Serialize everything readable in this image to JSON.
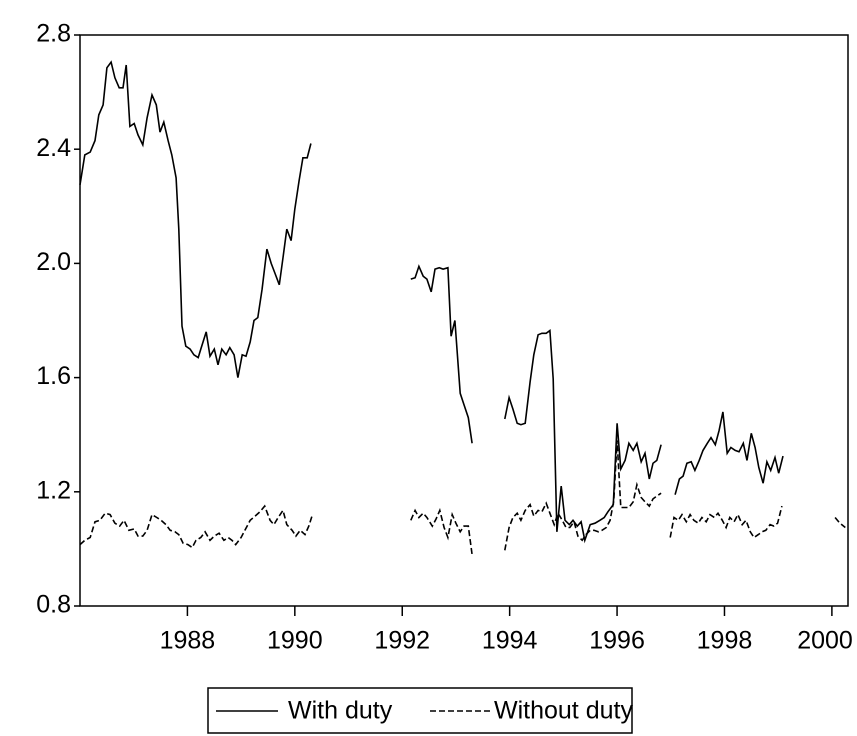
{
  "chart_data": {
    "type": "line",
    "xlim": [
      1986,
      2000.3
    ],
    "xticks": [
      1988,
      1990,
      1992,
      1994,
      1996,
      1998,
      2000
    ],
    "ylim": [
      0.8,
      2.8
    ],
    "yticks": [
      0.8,
      1.2,
      1.6,
      {
        "value": 2.0,
        "label": "2.0"
      },
      2.4,
      2.8
    ],
    "legend": "bottom",
    "series": [
      {
        "name": "With duty",
        "color": "#000000",
        "dash": "solid",
        "x": [
          1986.0,
          1986.09,
          1986.19,
          1986.28,
          1986.35,
          1986.43,
          1986.5,
          1986.58,
          1986.65,
          1986.73,
          1986.8,
          1986.86,
          1986.93,
          1987.01,
          1987.08,
          1987.17,
          1987.25,
          1987.34,
          1987.42,
          1987.49,
          1987.56,
          1987.64,
          1987.71,
          1987.79,
          1987.84,
          1987.9,
          1987.97,
          1988.05,
          1988.12,
          1988.2,
          1988.25,
          1988.35,
          1988.42,
          1988.5,
          1988.57,
          1988.64,
          1988.72,
          1988.79,
          1988.87,
          1988.94,
          1989.02,
          1989.09,
          1989.17,
          1989.24,
          1989.31,
          1989.39,
          1989.48,
          1989.56,
          1989.63,
          1989.71,
          1989.78,
          1989.85,
          1989.93,
          1990.0,
          1990.08,
          1990.15,
          1990.23,
          1990.3,
          1991.2,
          1992.16,
          1992.24,
          1992.31,
          1992.39,
          1992.46,
          1992.54,
          1992.61,
          1992.69,
          1992.76,
          1992.85,
          1992.91,
          1992.98,
          1993.08,
          1993.15,
          1993.23,
          1993.3,
          1993.6,
          1993.91,
          1993.99,
          1994.06,
          1994.14,
          1994.21,
          1994.29,
          1994.38,
          1994.45,
          1994.53,
          1994.6,
          1994.68,
          1994.75,
          1994.81,
          1994.88,
          1994.96,
          1995.03,
          1995.11,
          1995.18,
          1995.26,
          1995.33,
          1995.4,
          1995.5,
          1995.59,
          1995.68,
          1995.76,
          1995.83,
          1995.93,
          1996.0,
          1996.07,
          1996.15,
          1996.22,
          1996.3,
          1996.37,
          1996.45,
          1996.52,
          1996.6,
          1996.67,
          1996.74,
          1996.82,
          1996.95,
          1997.08,
          1997.16,
          1997.23,
          1997.3,
          1997.38,
          1997.45,
          1997.53,
          1997.6,
          1997.68,
          1997.75,
          1997.83,
          1997.9,
          1997.97,
          1998.05,
          1998.12,
          1998.2,
          1998.27,
          1998.35,
          1998.42,
          1998.5,
          1998.57,
          1998.64,
          1998.72,
          1998.79,
          1998.86,
          1998.94,
          1999.01,
          1999.09
        ],
        "values": [
          2.275,
          2.38,
          2.39,
          2.43,
          2.52,
          2.555,
          2.685,
          2.705,
          2.65,
          2.615,
          2.615,
          2.695,
          2.48,
          2.49,
          2.45,
          2.415,
          2.51,
          2.59,
          2.555,
          2.46,
          2.495,
          2.43,
          2.38,
          2.3,
          2.12,
          1.78,
          1.71,
          1.7,
          1.68,
          1.67,
          1.7,
          1.76,
          1.675,
          1.7,
          1.645,
          1.7,
          1.68,
          1.705,
          1.68,
          1.6,
          1.68,
          1.675,
          1.725,
          1.8,
          1.81,
          1.91,
          2.05,
          2.0,
          1.965,
          1.925,
          2.02,
          2.12,
          2.08,
          2.19,
          2.29,
          2.37,
          2.37,
          2.42,
          null,
          1.945,
          1.95,
          1.99,
          1.955,
          1.945,
          1.9,
          1.98,
          1.985,
          1.98,
          1.985,
          1.745,
          1.8,
          1.545,
          1.505,
          1.46,
          1.37,
          null,
          1.455,
          1.53,
          1.49,
          1.44,
          1.435,
          1.44,
          1.585,
          1.68,
          1.75,
          1.755,
          1.755,
          1.765,
          1.595,
          1.06,
          1.22,
          1.1,
          1.085,
          1.1,
          1.08,
          1.095,
          1.03,
          1.085,
          1.09,
          1.1,
          1.11,
          1.13,
          1.155,
          1.44,
          1.28,
          1.31,
          1.37,
          1.345,
          1.37,
          1.305,
          1.335,
          1.245,
          1.3,
          1.31,
          1.365,
          null,
          1.19,
          1.245,
          1.255,
          1.3,
          1.305,
          1.275,
          1.31,
          1.345,
          1.37,
          1.39,
          1.365,
          1.415,
          1.48,
          1.335,
          1.355,
          1.345,
          1.34,
          1.37,
          1.31,
          1.405,
          1.355,
          1.285,
          1.23,
          1.305,
          1.275,
          1.32,
          1.265,
          1.325
        ]
      },
      {
        "name": "Without duty",
        "color": "#000000",
        "dash": "dashed",
        "x": [
          1986.0,
          1986.09,
          1986.19,
          1986.28,
          1986.37,
          1986.47,
          1986.56,
          1986.65,
          1986.74,
          1986.82,
          1986.91,
          1987.01,
          1987.08,
          1987.17,
          1987.25,
          1987.34,
          1987.43,
          1987.51,
          1987.6,
          1987.68,
          1987.77,
          1987.84,
          1987.92,
          1988.01,
          1988.09,
          1988.16,
          1988.25,
          1988.33,
          1988.42,
          1988.5,
          1988.59,
          1988.68,
          1988.76,
          1988.83,
          1988.9,
          1989.0,
          1989.07,
          1989.17,
          1989.26,
          1989.35,
          1989.44,
          1989.54,
          1989.61,
          1989.69,
          1989.78,
          1989.85,
          1989.95,
          1990.02,
          1990.1,
          1990.19,
          1990.26,
          1990.32,
          1991.2,
          1992.16,
          1992.24,
          1992.31,
          1992.39,
          1992.46,
          1992.56,
          1992.63,
          1992.7,
          1992.78,
          1992.85,
          1992.93,
          1993.0,
          1993.08,
          1993.15,
          1993.23,
          1993.3,
          1993.6,
          1993.91,
          1993.99,
          1994.06,
          1994.14,
          1994.21,
          1994.29,
          1994.38,
          1994.45,
          1994.53,
          1994.6,
          1994.68,
          1994.75,
          1994.83,
          1994.9,
          1994.98,
          1995.05,
          1995.12,
          1995.2,
          1995.27,
          1995.35,
          1995.42,
          1995.5,
          1995.57,
          1995.65,
          1995.72,
          1995.8,
          1995.87,
          1995.94,
          1996.0,
          1996.07,
          1996.22,
          1996.3,
          1996.37,
          1996.45,
          1996.52,
          1996.6,
          1996.67,
          1996.74,
          1996.82,
          1996.9,
          1996.99,
          1997.06,
          1997.14,
          1997.21,
          1997.29,
          1997.36,
          1997.43,
          1997.51,
          1997.58,
          1997.66,
          1997.73,
          1997.81,
          1997.88,
          1997.96,
          1998.03,
          1998.1,
          1998.18,
          1998.25,
          1998.33,
          1998.4,
          1998.48,
          1998.55,
          1998.63,
          1998.7,
          1998.77,
          1998.85,
          1998.92,
          1998.99,
          1999.07,
          1999.6,
          2000.06,
          2000.15,
          2000.25
        ],
        "values": [
          1.015,
          1.03,
          1.04,
          1.095,
          1.1,
          1.125,
          1.12,
          1.09,
          1.08,
          1.1,
          1.065,
          1.07,
          1.045,
          1.045,
          1.065,
          1.12,
          1.11,
          1.1,
          1.085,
          1.065,
          1.06,
          1.05,
          1.02,
          1.015,
          1.005,
          1.03,
          1.04,
          1.06,
          1.03,
          1.045,
          1.055,
          1.03,
          1.04,
          1.03,
          1.015,
          1.04,
          1.065,
          1.1,
          1.115,
          1.13,
          1.15,
          1.1,
          1.085,
          1.11,
          1.135,
          1.085,
          1.065,
          1.045,
          1.065,
          1.05,
          1.08,
          1.115,
          null,
          1.1,
          1.135,
          1.11,
          1.125,
          1.11,
          1.08,
          1.105,
          1.135,
          1.075,
          1.04,
          1.12,
          1.09,
          1.06,
          1.08,
          1.08,
          0.98,
          null,
          0.995,
          1.075,
          1.11,
          1.125,
          1.1,
          1.135,
          1.155,
          1.115,
          1.135,
          1.13,
          1.16,
          1.125,
          1.085,
          1.125,
          1.1,
          1.075,
          1.075,
          1.095,
          1.045,
          1.03,
          1.05,
          1.065,
          1.065,
          1.06,
          1.065,
          1.075,
          1.1,
          1.17,
          1.38,
          1.145,
          1.145,
          1.165,
          1.225,
          1.18,
          1.165,
          1.15,
          1.175,
          1.185,
          1.195,
          null,
          1.04,
          1.11,
          1.1,
          1.12,
          1.095,
          1.12,
          1.1,
          1.09,
          1.11,
          1.095,
          1.12,
          1.11,
          1.125,
          1.1,
          1.075,
          1.11,
          1.095,
          1.12,
          1.085,
          1.1,
          1.06,
          1.04,
          1.05,
          1.06,
          1.065,
          1.085,
          1.08,
          1.09,
          1.15,
          null,
          1.11,
          1.09,
          1.075
        ]
      }
    ]
  }
}
